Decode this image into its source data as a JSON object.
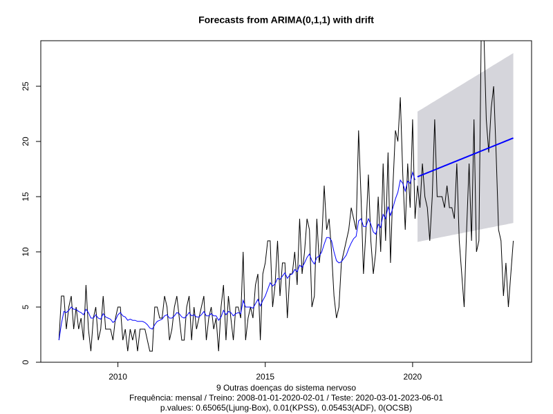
{
  "chart_data": {
    "type": "line",
    "title": "Forecasts from ARIMA(0,1,1) with drift",
    "xlabel": [
      "9 Outras doenças do sistema nervoso",
      "Frequência: mensal / Treino: 2008-01-01-2020-02-01 / Teste: 2020-03-01-2023-06-01",
      "p.values: 0.65065(Ljung-Box), 0.01(KPSS), 0.05453(ADF), 0(OCSB)"
    ],
    "xlim": [
      2007.383,
      2024.037
    ],
    "ylim": [
      0,
      29.125
    ],
    "xticks": [
      2010,
      2015,
      2020
    ],
    "yticks": [
      0,
      5,
      10,
      15,
      20,
      25
    ],
    "band": {
      "color": "#d5d5db",
      "x": [
        2020.167,
        2020.25,
        2020.333,
        2020.417,
        2020.5,
        2020.583,
        2020.667,
        2020.75,
        2020.833,
        2020.917,
        2021,
        2021.083,
        2021.167,
        2021.25,
        2021.333,
        2021.417,
        2021.5,
        2021.583,
        2021.667,
        2021.75,
        2021.833,
        2021.917,
        2022,
        2022.083,
        2022.167,
        2022.25,
        2022.333,
        2022.417,
        2022.5,
        2022.583,
        2022.667,
        2022.75,
        2022.833,
        2022.917,
        2023,
        2023.083,
        2023.167,
        2023.25,
        2023.333,
        2023.417
      ],
      "low": [
        10.9,
        10.94,
        10.99,
        11.03,
        11.08,
        11.12,
        11.16,
        11.21,
        11.25,
        11.3,
        11.34,
        11.38,
        11.43,
        11.47,
        11.52,
        11.56,
        11.6,
        11.65,
        11.69,
        11.74,
        11.78,
        11.82,
        11.87,
        11.91,
        11.96,
        12.0,
        12.04,
        12.09,
        12.13,
        12.18,
        12.22,
        12.26,
        12.31,
        12.35,
        12.4,
        12.44,
        12.48,
        12.53,
        12.57,
        12.62
      ],
      "high": [
        22.7,
        22.84,
        22.97,
        23.11,
        23.24,
        23.38,
        23.52,
        23.65,
        23.79,
        23.92,
        24.06,
        24.2,
        24.33,
        24.47,
        24.6,
        24.74,
        24.88,
        25.01,
        25.15,
        25.28,
        25.42,
        25.56,
        25.69,
        25.83,
        25.96,
        26.1,
        26.24,
        26.37,
        26.51,
        26.64,
        26.78,
        26.92,
        27.05,
        27.19,
        27.32,
        27.46,
        27.6,
        27.73,
        27.87,
        28.0
      ]
    },
    "series": [
      {
        "color": "#000000",
        "line_width": 1,
        "x": [
          2008,
          2008.083,
          2008.167,
          2008.25,
          2008.333,
          2008.417,
          2008.5,
          2008.583,
          2008.667,
          2008.75,
          2008.833,
          2008.917,
          2009,
          2009.083,
          2009.167,
          2009.25,
          2009.333,
          2009.417,
          2009.5,
          2009.583,
          2009.667,
          2009.75,
          2009.833,
          2009.917,
          2010,
          2010.083,
          2010.167,
          2010.25,
          2010.333,
          2010.417,
          2010.5,
          2010.583,
          2010.667,
          2010.75,
          2010.833,
          2010.917,
          2011,
          2011.083,
          2011.167,
          2011.25,
          2011.333,
          2011.417,
          2011.5,
          2011.583,
          2011.667,
          2011.75,
          2011.833,
          2011.917,
          2012,
          2012.083,
          2012.167,
          2012.25,
          2012.333,
          2012.417,
          2012.5,
          2012.583,
          2012.667,
          2012.75,
          2012.833,
          2012.917,
          2013,
          2013.083,
          2013.167,
          2013.25,
          2013.333,
          2013.417,
          2013.5,
          2013.583,
          2013.667,
          2013.75,
          2013.833,
          2013.917,
          2014,
          2014.083,
          2014.167,
          2014.25,
          2014.333,
          2014.417,
          2014.5,
          2014.583,
          2014.667,
          2014.75,
          2014.833,
          2014.917,
          2015,
          2015.083,
          2015.167,
          2015.25,
          2015.333,
          2015.417,
          2015.5,
          2015.583,
          2015.667,
          2015.75,
          2015.833,
          2015.917,
          2016,
          2016.083,
          2016.167,
          2016.25,
          2016.333,
          2016.417,
          2016.5,
          2016.583,
          2016.667,
          2016.75,
          2016.833,
          2016.917,
          2017,
          2017.083,
          2017.167,
          2017.25,
          2017.333,
          2017.417,
          2017.5,
          2017.583,
          2017.667,
          2017.75,
          2017.833,
          2017.917,
          2018,
          2018.083,
          2018.167,
          2018.25,
          2018.333,
          2018.417,
          2018.5,
          2018.583,
          2018.667,
          2018.75,
          2018.833,
          2018.917,
          2019,
          2019.083,
          2019.167,
          2019.25,
          2019.333,
          2019.417,
          2019.5,
          2019.583,
          2019.667,
          2019.75,
          2019.833,
          2019.917,
          2020,
          2020.083,
          2020.167,
          2020.25,
          2020.333,
          2020.417,
          2020.5,
          2020.583,
          2020.667,
          2020.75,
          2020.833,
          2020.917,
          2021,
          2021.083,
          2021.167,
          2021.25,
          2021.333,
          2021.417,
          2021.5,
          2021.583,
          2021.667,
          2021.75,
          2021.833,
          2021.917,
          2022,
          2022.083,
          2022.167,
          2022.25,
          2022.333,
          2022.417,
          2022.5,
          2022.583,
          2022.667,
          2022.75,
          2022.833,
          2022.917,
          2023,
          2023.083,
          2023.167,
          2023.25,
          2023.333,
          2023.417
        ],
        "values": [
          2,
          6,
          6,
          3,
          5,
          6,
          3,
          5,
          3,
          4,
          2,
          7,
          3,
          1,
          4,
          5,
          2,
          3,
          6,
          3,
          3,
          3,
          2,
          4,
          5,
          5,
          2,
          3,
          1,
          3,
          2,
          3,
          1,
          3,
          3,
          3,
          2,
          1,
          1,
          5,
          5,
          4,
          4,
          6,
          5,
          2,
          3,
          5,
          6,
          4,
          2,
          2,
          5,
          6,
          2,
          5,
          3,
          4,
          5,
          6,
          2,
          4,
          5,
          3,
          4,
          1,
          5,
          7,
          2,
          6,
          4,
          2,
          5,
          5,
          4,
          10,
          2,
          4,
          5,
          4,
          7,
          8,
          2,
          8,
          9,
          11,
          11,
          5,
          7,
          11,
          6,
          9,
          9,
          4,
          8,
          8,
          10,
          7,
          13,
          8,
          10,
          13,
          12,
          5,
          6,
          13,
          9,
          11,
          16,
          12,
          13,
          10,
          6,
          4,
          5,
          9,
          10,
          11,
          12,
          14,
          13,
          12,
          21,
          15,
          8,
          12,
          17,
          11,
          8,
          10,
          15,
          10,
          18,
          11,
          19,
          9,
          16,
          21,
          20,
          24,
          17,
          12,
          18,
          14,
          22,
          13,
          16,
          14,
          18,
          15,
          14,
          11,
          15,
          22,
          15,
          15,
          15,
          14,
          16,
          14,
          14,
          13,
          18,
          11,
          8,
          5,
          12,
          18,
          11,
          22,
          10,
          11,
          31,
          30,
          22,
          19,
          23,
          25,
          19,
          12,
          11,
          6,
          9,
          5,
          8,
          11
        ]
      },
      {
        "color": "#0000ff",
        "line_width": 1,
        "x": [
          2008,
          2008.083,
          2008.167,
          2008.25,
          2008.333,
          2008.417,
          2008.5,
          2008.583,
          2008.667,
          2008.75,
          2008.833,
          2008.917,
          2009,
          2009.083,
          2009.167,
          2009.25,
          2009.333,
          2009.417,
          2009.5,
          2009.583,
          2009.667,
          2009.75,
          2009.833,
          2009.917,
          2010,
          2010.083,
          2010.167,
          2010.25,
          2010.333,
          2010.417,
          2010.5,
          2010.583,
          2010.667,
          2010.75,
          2010.833,
          2010.917,
          2011,
          2011.083,
          2011.167,
          2011.25,
          2011.333,
          2011.417,
          2011.5,
          2011.583,
          2011.667,
          2011.75,
          2011.833,
          2011.917,
          2012,
          2012.083,
          2012.167,
          2012.25,
          2012.333,
          2012.417,
          2012.5,
          2012.583,
          2012.667,
          2012.75,
          2012.833,
          2012.917,
          2013,
          2013.083,
          2013.167,
          2013.25,
          2013.333,
          2013.417,
          2013.5,
          2013.583,
          2013.667,
          2013.75,
          2013.833,
          2013.917,
          2014,
          2014.083,
          2014.167,
          2014.25,
          2014.333,
          2014.417,
          2014.5,
          2014.583,
          2014.667,
          2014.75,
          2014.833,
          2014.917,
          2015,
          2015.083,
          2015.167,
          2015.25,
          2015.333,
          2015.417,
          2015.5,
          2015.583,
          2015.667,
          2015.75,
          2015.833,
          2015.917,
          2016,
          2016.083,
          2016.167,
          2016.25,
          2016.333,
          2016.417,
          2016.5,
          2016.583,
          2016.667,
          2016.75,
          2016.833,
          2016.917,
          2017,
          2017.083,
          2017.167,
          2017.25,
          2017.333,
          2017.417,
          2017.5,
          2017.583,
          2017.667,
          2017.75,
          2017.833,
          2017.917,
          2018,
          2018.083,
          2018.167,
          2018.25,
          2018.333,
          2018.417,
          2018.5,
          2018.583,
          2018.667,
          2018.75,
          2018.833,
          2018.917,
          2019,
          2019.083,
          2019.167,
          2019.25,
          2019.333,
          2019.417,
          2019.5,
          2019.583,
          2019.667,
          2019.75,
          2019.833,
          2019.917,
          2020,
          2020.083
        ],
        "values": [
          2,
          3.5,
          4.6,
          4.5,
          4.7,
          5.0,
          4.8,
          4.8,
          4.6,
          4.5,
          4.3,
          4.8,
          4.5,
          4.0,
          4.0,
          4.3,
          4.0,
          3.9,
          4.4,
          4.1,
          4.0,
          3.9,
          3.6,
          3.8,
          4.3,
          4.5,
          4.2,
          4.1,
          3.8,
          3.9,
          3.8,
          3.8,
          3.7,
          3.7,
          3.7,
          3.6,
          3.4,
          3.1,
          3.0,
          3.4,
          3.7,
          3.8,
          3.9,
          4.2,
          4.3,
          4.0,
          4.0,
          4.2,
          4.5,
          4.4,
          4.1,
          4.0,
          4.2,
          4.5,
          4.2,
          4.3,
          4.1,
          4.1,
          4.3,
          4.6,
          4.2,
          4.2,
          4.4,
          4.2,
          4.2,
          3.8,
          4.1,
          4.7,
          4.3,
          4.6,
          4.5,
          4.2,
          4.4,
          4.5,
          4.4,
          5.6,
          5.0,
          5.0,
          5.0,
          4.9,
          5.3,
          5.7,
          5.1,
          5.6,
          6.0,
          6.6,
          7.2,
          6.9,
          7.1,
          7.6,
          7.5,
          7.8,
          8.1,
          7.6,
          7.9,
          8.0,
          8.4,
          8.2,
          8.8,
          8.6,
          9.0,
          9.5,
          9.8,
          9.2,
          8.9,
          9.5,
          9.6,
          10.0,
          10.7,
          11.3,
          11.3,
          11.0,
          10.0,
          9.2,
          9.0,
          9.1,
          9.4,
          9.7,
          10.3,
          10.8,
          11.2,
          11.4,
          12.8,
          13.0,
          12.3,
          12.3,
          13.0,
          12.5,
          11.8,
          11.6,
          12.5,
          12.2,
          13.4,
          13.0,
          14.1,
          13.3,
          14.0,
          14.8,
          15.4,
          16.5,
          16.2,
          15.5,
          16.4,
          16.2,
          17.2,
          16.5
        ]
      },
      {
        "color": "#0000ff",
        "line_width": 2,
        "x": [
          2020.167,
          2020.25,
          2020.333,
          2020.417,
          2020.5,
          2020.583,
          2020.667,
          2020.75,
          2020.833,
          2020.917,
          2021,
          2021.083,
          2021.167,
          2021.25,
          2021.333,
          2021.417,
          2021.5,
          2021.583,
          2021.667,
          2021.75,
          2021.833,
          2021.917,
          2022,
          2022.083,
          2022.167,
          2022.25,
          2022.333,
          2022.417,
          2022.5,
          2022.583,
          2022.667,
          2022.75,
          2022.833,
          2022.917,
          2023,
          2023.083,
          2023.167,
          2023.25,
          2023.333,
          2023.417
        ],
        "values": [
          16.8,
          16.89,
          16.98,
          17.07,
          17.16,
          17.25,
          17.34,
          17.43,
          17.52,
          17.61,
          17.7,
          17.79,
          17.88,
          17.97,
          18.06,
          18.15,
          18.24,
          18.33,
          18.42,
          18.51,
          18.6,
          18.69,
          18.78,
          18.87,
          18.96,
          19.05,
          19.14,
          19.23,
          19.32,
          19.41,
          19.5,
          19.59,
          19.68,
          19.77,
          19.86,
          19.95,
          20.04,
          20.13,
          20.22,
          20.31
        ]
      }
    ]
  }
}
